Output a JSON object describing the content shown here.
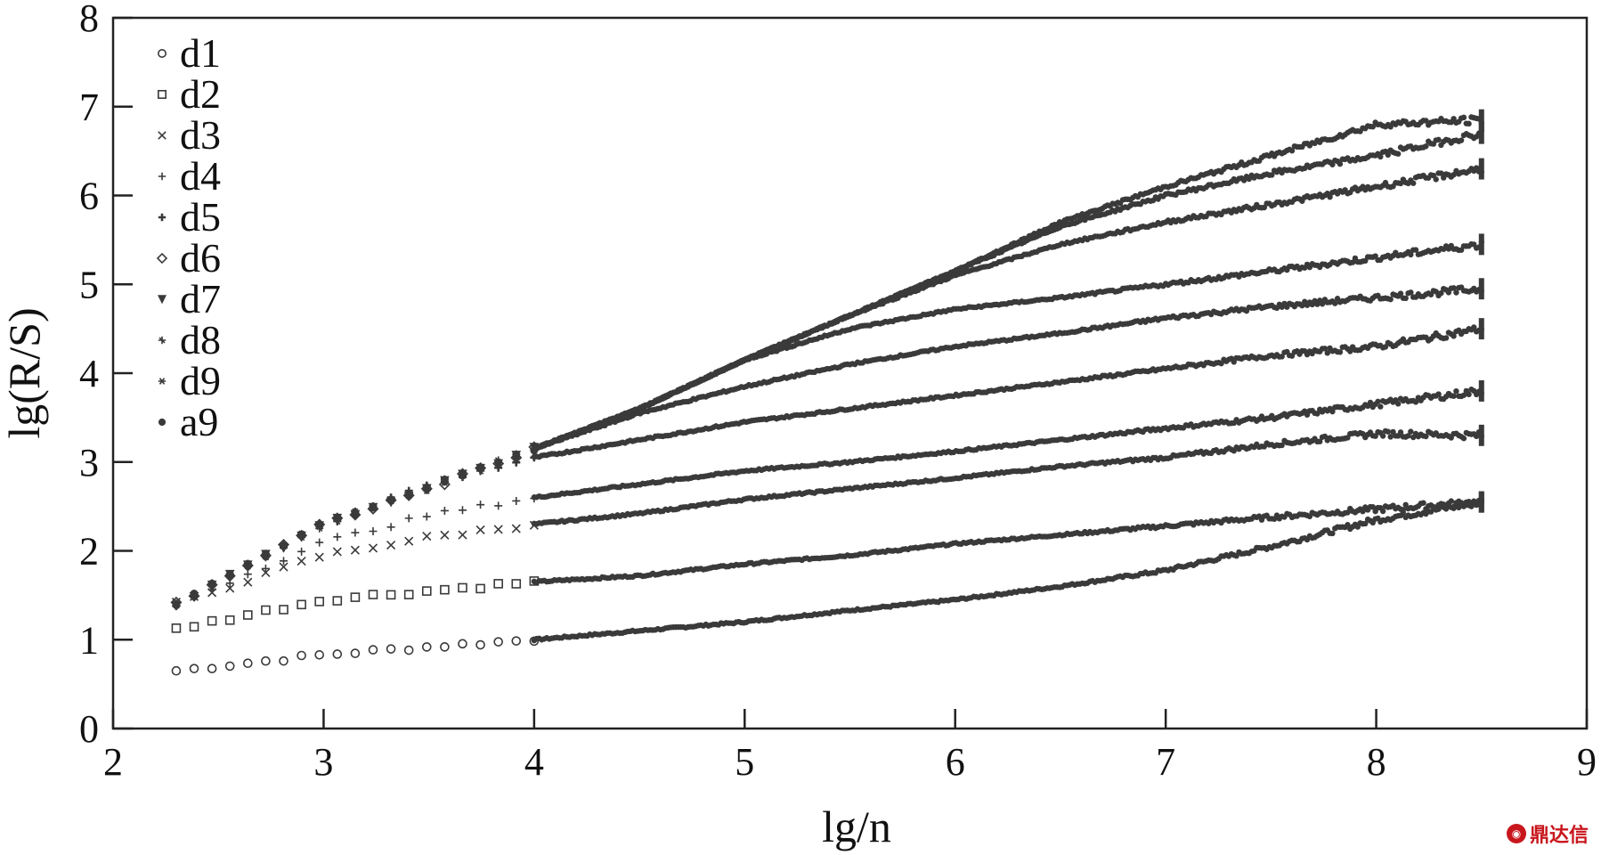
{
  "chart_data": {
    "type": "scatter",
    "xlabel": "lg/n",
    "ylabel": "lg(R/S)",
    "xlim": [
      2,
      9
    ],
    "ylim": [
      0,
      8
    ],
    "xticks": [
      2,
      3,
      4,
      5,
      6,
      7,
      8,
      9
    ],
    "yticks": [
      0,
      1,
      2,
      3,
      4,
      5,
      6,
      7,
      8
    ],
    "grid": false,
    "legend_position": "top-left",
    "point_color": "#3a3a3a",
    "series": [
      {
        "name": "d1",
        "marker": "circle",
        "x": [
          2.3,
          3.0,
          3.5,
          4.0,
          4.5,
          5.0,
          5.5,
          6.0,
          6.5,
          7.0,
          7.5,
          8.0,
          8.5
        ],
        "y": [
          0.65,
          0.83,
          0.92,
          1.0,
          1.1,
          1.2,
          1.33,
          1.45,
          1.6,
          1.78,
          2.05,
          2.35,
          2.55
        ]
      },
      {
        "name": "d2",
        "marker": "square",
        "x": [
          2.3,
          3.0,
          3.5,
          4.0,
          4.5,
          5.0,
          5.5,
          6.0,
          6.5,
          7.0,
          7.5,
          8.0,
          8.5
        ],
        "y": [
          1.12,
          1.45,
          1.55,
          1.65,
          1.72,
          1.85,
          1.95,
          2.08,
          2.18,
          2.28,
          2.38,
          2.47,
          2.55
        ]
      },
      {
        "name": "d3",
        "marker": "x",
        "x": [
          2.3,
          3.0,
          3.5,
          4.0,
          4.5,
          5.0,
          5.5,
          6.0,
          6.5,
          7.0,
          7.5,
          8.0,
          8.5
        ],
        "y": [
          1.4,
          1.95,
          2.15,
          2.3,
          2.42,
          2.58,
          2.7,
          2.82,
          2.95,
          3.05,
          3.2,
          3.32,
          3.3
        ]
      },
      {
        "name": "d4",
        "marker": "plus",
        "x": [
          2.3,
          3.0,
          3.5,
          4.0,
          4.5,
          5.0,
          5.5,
          6.0,
          6.5,
          7.0,
          7.5,
          8.0,
          8.5
        ],
        "y": [
          1.4,
          2.1,
          2.4,
          2.6,
          2.75,
          2.9,
          3.0,
          3.12,
          3.25,
          3.38,
          3.5,
          3.65,
          3.8
        ]
      },
      {
        "name": "d5",
        "marker": "cross",
        "x": [
          2.3,
          3.0,
          3.5,
          4.0,
          4.5,
          5.0,
          5.5,
          6.0,
          6.5,
          7.0,
          7.5,
          8.0,
          8.5
        ],
        "y": [
          1.4,
          2.3,
          2.75,
          3.05,
          3.25,
          3.45,
          3.6,
          3.75,
          3.9,
          4.05,
          4.2,
          4.3,
          4.5
        ]
      },
      {
        "name": "d6",
        "marker": "diamond",
        "x": [
          2.3,
          3.0,
          3.5,
          4.0,
          4.5,
          5.0,
          5.5,
          6.0,
          6.5,
          7.0,
          7.5,
          8.0,
          8.5
        ],
        "y": [
          1.4,
          2.3,
          2.7,
          3.15,
          3.55,
          3.85,
          4.1,
          4.3,
          4.45,
          4.62,
          4.75,
          4.85,
          4.95
        ]
      },
      {
        "name": "d7",
        "marker": "triangle",
        "x": [
          2.3,
          3.0,
          3.5,
          4.0,
          4.5,
          5.0,
          5.5,
          6.0,
          6.5,
          7.0,
          7.5,
          8.0,
          8.5
        ],
        "y": [
          1.4,
          2.3,
          2.7,
          3.15,
          3.6,
          4.15,
          4.5,
          4.72,
          4.85,
          5.0,
          5.15,
          5.3,
          5.45
        ]
      },
      {
        "name": "d8",
        "marker": "star",
        "x": [
          2.3,
          3.0,
          3.5,
          4.0,
          4.5,
          5.0,
          5.5,
          6.0,
          6.5,
          7.0,
          7.5,
          8.0,
          8.5
        ],
        "y": [
          1.4,
          2.3,
          2.7,
          3.15,
          3.6,
          4.15,
          4.65,
          5.1,
          5.45,
          5.7,
          5.9,
          6.1,
          6.3
        ]
      },
      {
        "name": "d9",
        "marker": "asterisk",
        "x": [
          2.3,
          3.0,
          3.5,
          4.0,
          4.5,
          5.0,
          5.5,
          6.0,
          6.5,
          7.0,
          7.5,
          8.0,
          8.5
        ],
        "y": [
          1.4,
          2.3,
          2.7,
          3.15,
          3.6,
          4.15,
          4.65,
          5.15,
          5.65,
          6.0,
          6.25,
          6.45,
          6.7
        ]
      },
      {
        "name": "a9",
        "marker": "dot",
        "x": [
          2.3,
          3.0,
          3.5,
          4.0,
          4.5,
          5.0,
          5.5,
          6.0,
          6.5,
          7.0,
          7.5,
          8.0,
          8.5
        ],
        "y": [
          1.4,
          2.3,
          2.7,
          3.15,
          3.6,
          4.15,
          4.65,
          5.15,
          5.7,
          6.1,
          6.45,
          6.8,
          6.85
        ]
      }
    ]
  },
  "watermark": {
    "text": "鼎达信",
    "icon": "logo-icon"
  }
}
